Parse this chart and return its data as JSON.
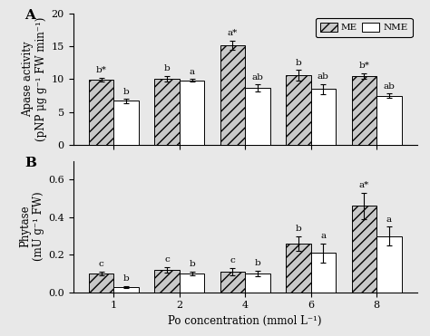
{
  "categories": [
    1,
    2,
    4,
    6,
    8
  ],
  "panel_A": {
    "title": "A",
    "ylabel": "Apase activity\n(pNP μg g⁻¹ FW min⁻¹)",
    "ylim": [
      0,
      20
    ],
    "yticks": [
      0,
      5,
      10,
      15,
      20
    ],
    "ME_values": [
      9.9,
      10.1,
      15.2,
      10.6,
      10.5
    ],
    "ME_errors": [
      0.3,
      0.4,
      0.7,
      0.8,
      0.4
    ],
    "NME_values": [
      6.7,
      9.8,
      8.7,
      8.5,
      7.5
    ],
    "NME_errors": [
      0.3,
      0.2,
      0.5,
      0.8,
      0.3
    ],
    "ME_labels": [
      "b*",
      "b",
      "a*",
      "b",
      "b*"
    ],
    "NME_labels": [
      "b",
      "a",
      "ab",
      "ab",
      "ab"
    ]
  },
  "panel_B": {
    "title": "B",
    "ylabel": "Phytase\n(mU g⁻¹ FW)",
    "ylim": [
      0.0,
      0.7
    ],
    "yticks": [
      0.0,
      0.2,
      0.4,
      0.6
    ],
    "ME_values": [
      0.1,
      0.12,
      0.11,
      0.26,
      0.46
    ],
    "ME_errors": [
      0.01,
      0.015,
      0.02,
      0.04,
      0.07
    ],
    "NME_values": [
      0.03,
      0.1,
      0.1,
      0.21,
      0.3
    ],
    "NME_errors": [
      0.005,
      0.01,
      0.015,
      0.05,
      0.05
    ],
    "ME_labels": [
      "c",
      "c",
      "c",
      "b",
      "a*"
    ],
    "NME_labels": [
      "b",
      "b",
      "b",
      "a",
      "a"
    ]
  },
  "xlabel": "Po concentration (mmol L⁻¹)",
  "legend_ME": "ME",
  "legend_NME": "NME",
  "hatch_ME": "///",
  "bar_width": 0.38,
  "bar_color_ME": "#c8c8c8",
  "bar_color_NME": "#ffffff",
  "edge_color": "#000000",
  "label_fontsize": 7.5,
  "tick_fontsize": 8,
  "axis_label_fontsize": 8.5,
  "panel_label_fontsize": 11,
  "fig_facecolor": "#e8e8e8"
}
